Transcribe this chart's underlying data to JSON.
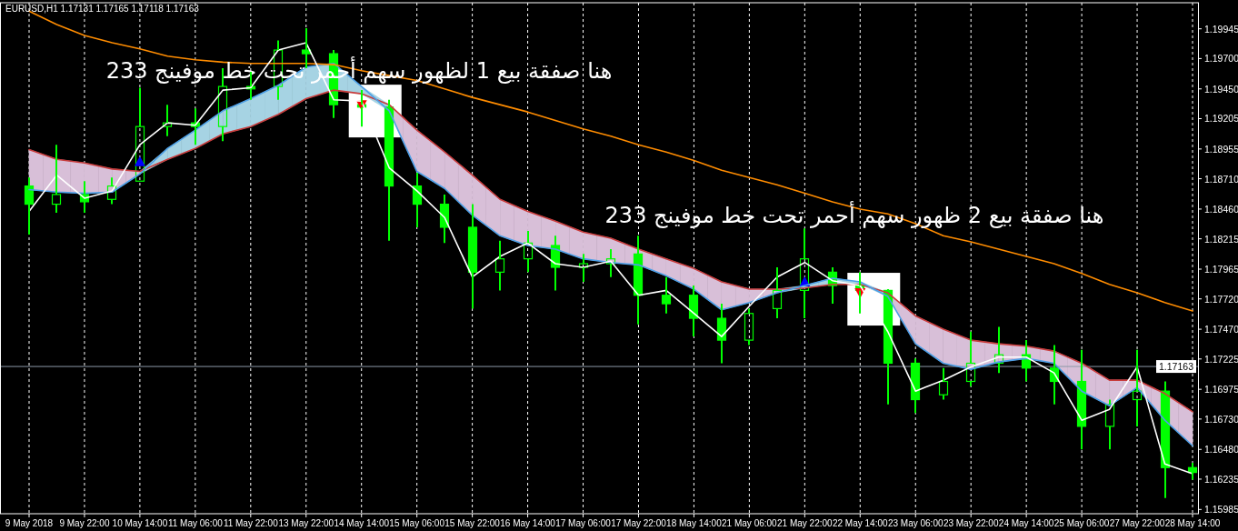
{
  "chart_data": {
    "type": "candlestick",
    "title": "EURUSD,H1  1.17131 1.17165 1.17118 1.17163",
    "categories": [
      "9 May 2018",
      null,
      "9 May 22:00",
      null,
      "10 May 14:00",
      null,
      "11 May 06:00",
      null,
      "11 May 22:00",
      null,
      "13 May 22:00",
      null,
      "14 May 14:00",
      null,
      "15 May 06:00",
      null,
      "15 May 22:00",
      null,
      "16 May 14:00",
      null,
      "17 May 06:00",
      null,
      "17 May 22:00",
      null,
      "18 May 14:00",
      null,
      "21 May 06:00",
      null,
      "21 May 22:00",
      null,
      "22 May 14:00",
      null,
      "23 May 06:00",
      null,
      "23 May 22:00",
      null,
      "24 May 14:00",
      null,
      "25 May 06:00",
      null,
      "27 May 22:00",
      null,
      "28 May 14:00"
    ],
    "ohlc": [
      [
        1.1865,
        1.1872,
        1.1825,
        1.185
      ],
      [
        1.185,
        1.1899,
        1.1843,
        1.1858
      ],
      [
        1.1858,
        1.1869,
        1.1843,
        1.1852
      ],
      [
        1.1854,
        1.1872,
        1.185,
        1.1865
      ],
      [
        1.1869,
        1.1946,
        1.1869,
        1.1914
      ],
      [
        1.1914,
        1.1932,
        1.1906,
        1.1917
      ],
      [
        1.1917,
        1.1929,
        1.1899,
        1.1914
      ],
      [
        1.1914,
        1.1962,
        1.1902,
        1.1947
      ],
      [
        1.1947,
        1.1959,
        1.1936,
        1.1945
      ],
      [
        1.1947,
        1.1985,
        1.1936,
        1.1977
      ],
      [
        1.1977,
        1.1995,
        1.1962,
        1.1974
      ],
      [
        1.1974,
        1.1977,
        1.1921,
        1.1932
      ],
      [
        1.1932,
        1.1944,
        1.1914,
        1.193
      ],
      [
        1.193,
        1.1936,
        1.182,
        1.1865
      ],
      [
        1.1865,
        1.1876,
        1.1831,
        1.185
      ],
      [
        1.185,
        1.1858,
        1.1818,
        1.1831
      ],
      [
        1.1831,
        1.185,
        1.1764,
        1.1794
      ],
      [
        1.1794,
        1.182,
        1.1779,
        1.1805
      ],
      [
        1.1805,
        1.1828,
        1.1794,
        1.1818
      ],
      [
        1.1816,
        1.1824,
        1.1779,
        1.1798
      ],
      [
        1.1798,
        1.1809,
        1.1786,
        1.1801
      ],
      [
        1.1801,
        1.1813,
        1.179,
        1.1805
      ],
      [
        1.1809,
        1.1824,
        1.1751,
        1.1775
      ],
      [
        1.1775,
        1.179,
        1.176,
        1.1768
      ],
      [
        1.1775,
        1.1783,
        1.1741,
        1.1756
      ],
      [
        1.1756,
        1.1768,
        1.1719,
        1.1738
      ],
      [
        1.1738,
        1.1764,
        1.1734,
        1.176
      ],
      [
        1.1764,
        1.1798,
        1.1756,
        1.1779
      ],
      [
        1.1779,
        1.183,
        1.1756,
        1.1805
      ],
      [
        1.1794,
        1.1798,
        1.1768,
        1.1783
      ],
      [
        1.1783,
        1.1794,
        1.176,
        1.1779
      ],
      [
        1.1779,
        1.178,
        1.1685,
        1.1719
      ],
      [
        1.1719,
        1.1723,
        1.1678,
        1.1689
      ],
      [
        1.1693,
        1.1715,
        1.1689,
        1.1704
      ],
      [
        1.1704,
        1.1745,
        1.17,
        1.1719
      ],
      [
        1.1719,
        1.1749,
        1.1711,
        1.1726
      ],
      [
        1.1726,
        1.1738,
        1.1704,
        1.1715
      ],
      [
        1.1715,
        1.1734,
        1.1685,
        1.1704
      ],
      [
        1.1704,
        1.173,
        1.1648,
        1.1667
      ],
      [
        1.1667,
        1.1689,
        1.1648,
        1.1685
      ],
      [
        1.1689,
        1.173,
        1.1667,
        1.1696
      ],
      [
        1.1696,
        1.1704,
        1.1608,
        1.1633
      ],
      [
        1.1633,
        1.1637,
        1.1623,
        1.1629
      ]
    ],
    "color": "#00ff00",
    "series": [
      {
        "type": "line",
        "color": "#c83c3c",
        "values": [
          1.1895,
          1.1887,
          1.1884,
          1.1879,
          1.1877,
          1.1887,
          1.1896,
          1.1908,
          1.1914,
          1.1924,
          1.1937,
          1.1944,
          1.1941,
          1.1932,
          1.1911,
          1.1893,
          1.1874,
          1.1854,
          1.1844,
          1.1836,
          1.1827,
          1.1822,
          1.1813,
          1.1805,
          1.1797,
          1.1786,
          1.178,
          1.178,
          1.1781,
          1.1784,
          1.1784,
          1.1777,
          1.1758,
          1.1747,
          1.1738,
          1.1735,
          1.1733,
          1.1729,
          1.1719,
          1.1705,
          1.1705,
          1.1694,
          1.1679
        ],
        "lower": [
          1.1862,
          1.186,
          1.1859,
          1.186,
          1.1875,
          null,
          null,
          null,
          null,
          null,
          null,
          null,
          null,
          1.1927,
          1.1877,
          1.1863,
          1.1841,
          1.1824,
          1.1816,
          1.1813,
          1.1805,
          1.1802,
          1.18,
          1.1791,
          1.178,
          1.1763,
          1.1769,
          1.1777,
          null,
          null,
          null,
          1.1774,
          1.1735,
          1.1719,
          1.1714,
          1.172,
          1.1723,
          1.1719,
          1.1696,
          1.1684,
          1.1699,
          1.1672,
          1.1651
        ],
        "upper": [
          1.1895,
          1.1887,
          1.1884,
          1.1879,
          1.1877,
          null,
          null,
          null,
          null,
          null,
          null,
          null,
          null,
          1.1932,
          1.1911,
          1.1893,
          1.1874,
          1.1854,
          1.1844,
          1.1836,
          1.1827,
          1.1822,
          1.1813,
          1.1805,
          1.1797,
          1.1786,
          1.178,
          1.178,
          null,
          null,
          null,
          1.1777,
          1.1758,
          1.1747,
          1.1738,
          1.1735,
          1.1733,
          1.1729,
          1.1719,
          1.1705,
          1.1705,
          1.1694,
          1.1679
        ],
        "colors": [
          "#d8bfd8",
          "#d8bfd8",
          "#d8bfd8",
          "#d8bfd8",
          "#d8bfd8",
          null,
          null,
          null,
          null,
          null,
          null,
          null,
          null,
          "#d8bfd8",
          "#d8bfd8",
          "#d8bfd8",
          "#d8bfd8",
          "#d8bfd8",
          "#d8bfd8",
          "#d8bfd8",
          "#d8bfd8",
          "#d8bfd8",
          "#d8bfd8",
          "#d8bfd8",
          "#d8bfd8",
          "#d8bfd8",
          "#d8bfd8",
          "#d8bfd8",
          null,
          null,
          null,
          "#d8bfd8",
          "#d8bfd8",
          "#d8bfd8",
          "#d8bfd8",
          "#d8bfd8",
          "#d8bfd8",
          "#d8bfd8",
          "#d8bfd8",
          "#d8bfd8",
          "#d8bfd8",
          "#d8bfd8",
          "#d8bfd8"
        ]
      },
      {
        "type": "line",
        "color": "#4d9fe6",
        "values": [
          1.1862,
          1.186,
          1.1859,
          1.186,
          1.1875,
          1.1896,
          1.1911,
          1.1927,
          1.1937,
          1.1948,
          1.1963,
          1.1966,
          1.1947,
          1.1927,
          1.1877,
          1.1863,
          1.1841,
          1.1824,
          1.1816,
          1.1813,
          1.1805,
          1.1802,
          1.18,
          1.1791,
          1.178,
          1.1763,
          1.1769,
          1.1777,
          1.1783,
          1.1789,
          1.1786,
          1.1774,
          1.1735,
          1.1719,
          1.1714,
          1.172,
          1.1723,
          1.1719,
          1.1696,
          1.1684,
          1.1699,
          1.1672,
          1.1651
        ],
        "lower": [
          null,
          null,
          null,
          null,
          1.1875,
          1.1887,
          1.1896,
          1.1908,
          1.1914,
          1.1924,
          1.1937,
          1.1944,
          1.1941,
          1.1927,
          null,
          null,
          null,
          null,
          null,
          null,
          null,
          null,
          null,
          null,
          null,
          null,
          null,
          1.1777,
          1.1781,
          1.1784,
          1.1784,
          1.1774,
          null,
          null,
          null,
          null,
          null,
          null,
          null,
          null,
          null,
          null,
          null
        ],
        "upper": [
          null,
          null,
          null,
          null,
          1.1877,
          1.1896,
          1.1911,
          1.1927,
          1.1937,
          1.1948,
          1.1963,
          1.1966,
          1.1947,
          1.1932,
          null,
          null,
          null,
          null,
          null,
          null,
          null,
          null,
          null,
          null,
          null,
          null,
          null,
          1.178,
          1.1783,
          1.1789,
          1.1786,
          1.1777,
          null,
          null,
          null,
          null,
          null,
          null,
          null,
          null,
          null,
          null,
          null
        ],
        "colors": [
          null,
          null,
          null,
          null,
          "#a6d3e3",
          "#a6d3e3",
          "#a6d3e3",
          "#a6d3e3",
          "#a6d3e3",
          "#a6d3e3",
          "#a6d3e3",
          "#a6d3e3",
          "#a6d3e3",
          "#a6d3e3",
          null,
          null,
          null,
          null,
          null,
          null,
          null,
          null,
          null,
          null,
          null,
          null,
          null,
          "#a6d3e3",
          "#a6d3e3",
          "#a6d3e3",
          "#a6d3e3",
          "#a6d3e3",
          null,
          null,
          null,
          null,
          null,
          null,
          null,
          null,
          null,
          null,
          null
        ]
      },
      {
        "type": "line",
        "color": "#ff8c00",
        "values": [
          1.2009,
          1.1998,
          1.1989,
          1.1983,
          1.1978,
          1.1972,
          1.1969,
          1.1967,
          1.1966,
          1.1966,
          1.1966,
          1.1965,
          1.196,
          1.1956,
          1.1952,
          1.1945,
          1.1938,
          1.1932,
          1.1926,
          1.1919,
          1.1912,
          1.1906,
          1.1899,
          1.1893,
          1.1886,
          1.1878,
          1.1872,
          1.1866,
          1.1859,
          1.1852,
          1.1846,
          1.1842,
          1.1834,
          1.1824,
          1.1819,
          1.1813,
          1.1807,
          1.1801,
          1.1793,
          1.1784,
          1.1777,
          1.1769,
          1.1762
        ]
      },
      {
        "type": "line",
        "color": "#ffffff",
        "values": [
          1.1844,
          1.1874,
          1.1855,
          1.1861,
          1.1899,
          1.1917,
          1.1915,
          1.1944,
          1.1946,
          1.1977,
          1.1983,
          1.1936,
          1.1935,
          1.188,
          1.1861,
          1.1839,
          1.179,
          1.1807,
          1.1818,
          1.1801,
          1.1798,
          1.1803,
          1.1775,
          1.1779,
          1.176,
          1.1741,
          1.1766,
          1.179,
          1.1802,
          1.1787,
          1.1783,
          1.1745,
          1.1696,
          1.1705,
          1.1716,
          1.1724,
          1.1724,
          1.1711,
          1.1672,
          1.1681,
          1.1716,
          1.1636,
          1.1628
        ]
      },
      {
        "type": "scatter",
        "marker": "triangle",
        "color": "#0000ff",
        "values": [
          null,
          null,
          null,
          null,
          1.1885,
          null,
          null,
          null,
          null,
          null,
          null,
          null,
          null,
          null,
          null,
          null,
          null,
          null,
          null,
          null,
          null,
          null,
          null,
          null,
          null,
          null,
          null,
          null,
          1.1786,
          null,
          null,
          null,
          null,
          null,
          null,
          null,
          null,
          null,
          null,
          null,
          null,
          null,
          null
        ]
      },
      {
        "type": "scatter",
        "marker": "triangle-down",
        "color": "#ff0000",
        "values": [
          null,
          null,
          null,
          null,
          null,
          null,
          null,
          null,
          null,
          null,
          null,
          null,
          1.1932,
          null,
          null,
          null,
          null,
          null,
          null,
          null,
          null,
          null,
          null,
          null,
          null,
          null,
          null,
          null,
          null,
          null,
          1.1777,
          null,
          null,
          null,
          null,
          null,
          null,
          null,
          null,
          null,
          null,
          null,
          null
        ]
      }
    ],
    "ylim": [
      1.1595,
      1.2016
    ],
    "yticks": [
      1.19945,
      {
        "value": 1.197,
        "label": "1.19700"
      },
      {
        "value": 1.1945,
        "label": "1.19450"
      },
      1.19205,
      1.18955,
      {
        "value": 1.1871,
        "label": "1.18710"
      },
      {
        "value": 1.1846,
        "label": "1.18460"
      },
      1.18215,
      1.17965,
      {
        "value": 1.1772,
        "label": "1.17720"
      },
      {
        "value": 1.1747,
        "label": "1.17470"
      },
      1.17225,
      1.16975,
      {
        "value": 1.1673,
        "label": "1.16730"
      },
      {
        "value": 1.1648,
        "label": "1.16480"
      },
      1.16235,
      1.15985
    ],
    "grid": "x",
    "ref_lines": [
      {
        "axis": "y",
        "value": 1.17163,
        "label": "1.17163",
        "color": "#8c97a6"
      }
    ],
    "annotations": [
      "هنا صفقة بيع 1 لظهور سهم أحمر تحت خط موفينج 233",
      "هنا صفقة بيع 2 ظهور سهم أحمر تحت خط موفينج 233"
    ]
  }
}
